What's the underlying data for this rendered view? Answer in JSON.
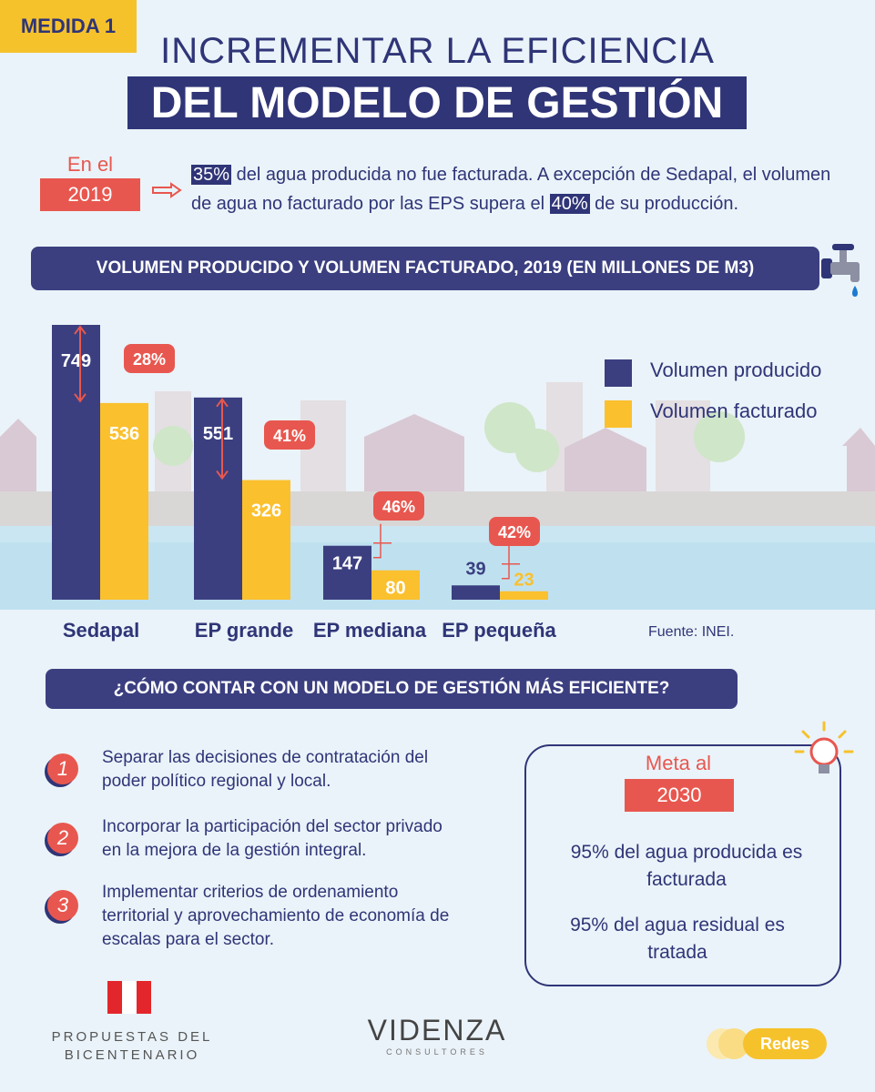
{
  "header": {
    "tag": "MEDIDA 1",
    "title_line1": "INCREMENTAR LA EFICIENCIA",
    "title_line2": "DEL MODELO DE GESTIÓN"
  },
  "intro": {
    "prefix": "En el",
    "year": "2019",
    "pct_not_billed": "35%",
    "text_a": " del agua producida no fue facturada. A excepción de Sedapal, el volumen de agua no facturado por las EPS supera el ",
    "pct_eps": "40%",
    "text_b": " de su producción."
  },
  "chart_section_title": "VOLUMEN PRODUCIDO Y VOLUMEN FACTURADO, 2019 (EN MILLONES DE M3)",
  "chart_data": {
    "type": "bar",
    "title": "VOLUMEN PRODUCIDO Y VOLUMEN FACTURADO, 2019 (EN MILLONES DE M3)",
    "categories": [
      "Sedapal",
      "EP grande",
      "EP mediana",
      "EP pequeña"
    ],
    "series": [
      {
        "name": "Volumen producido",
        "values": [
          749,
          551,
          147,
          39
        ],
        "color": "#3b3f80"
      },
      {
        "name": "Volumen facturado",
        "values": [
          536,
          326,
          80,
          23
        ],
        "color": "#fbc02d"
      }
    ],
    "gap_labels": [
      "28%",
      "41%",
      "46%",
      "42%"
    ],
    "legend_position": "right",
    "ylim": [
      0,
      749
    ],
    "grid": false
  },
  "source": "Fuente: INEI.",
  "section2": {
    "title": "¿CÓMO CONTAR CON UN MODELO DE GESTIÓN MÁS EFICIENTE?",
    "items": [
      {
        "num": "1",
        "line1": "Separar las decisiones de contratación del",
        "line2": "poder político regional y local.",
        "line3": ""
      },
      {
        "num": "2",
        "line1": "Incorporar la participación del sector privado",
        "line2": "en la mejora de la gestión integral.",
        "line3": ""
      },
      {
        "num": "3",
        "line1": "Implementar criterios de ordenamiento",
        "line2": "territorial y aprovechamiento de economía de",
        "line3": "escalas para el sector."
      }
    ]
  },
  "goal": {
    "label": "Meta al",
    "year": "2030",
    "g1_line1": "95% del agua producida es",
    "g1_line2": "facturada",
    "g2_line1": "95% del agua residual es",
    "g2_line2": "tratada"
  },
  "footer": {
    "logo1_line1": "PROPUESTAS DEL",
    "logo1_line2": "BICENTENARIO",
    "logo2_main": "VIDENZA",
    "logo2_sub": "CONSULTORES",
    "redes": "Redes"
  },
  "colors": {
    "navy": "#2f3577",
    "yellow": "#fbc02d",
    "red": "#e8574f"
  }
}
